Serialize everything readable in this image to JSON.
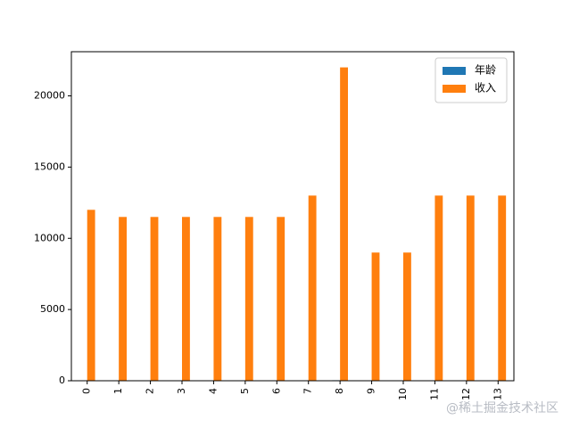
{
  "chart_data": {
    "type": "bar",
    "categories": [
      "0",
      "1",
      "2",
      "3",
      "4",
      "5",
      "6",
      "7",
      "8",
      "9",
      "10",
      "11",
      "12",
      "13"
    ],
    "series": [
      {
        "name": "年龄",
        "color": "#1f77b4",
        "values": [
          25,
          24,
          23,
          22,
          25,
          24,
          23,
          28,
          35,
          21,
          22,
          27,
          26,
          28
        ]
      },
      {
        "name": "收入",
        "color": "#ff7f0e",
        "values": [
          12000,
          11500,
          11500,
          11500,
          11500,
          11500,
          11500,
          13000,
          22000,
          9000,
          9000,
          13000,
          13000,
          13000
        ]
      }
    ],
    "ylim": [
      0,
      23100
    ],
    "yticks": [
      0,
      5000,
      10000,
      15000,
      20000
    ],
    "legend": "upper right",
    "grid": false
  },
  "watermark": "@稀土掘金技术社区"
}
